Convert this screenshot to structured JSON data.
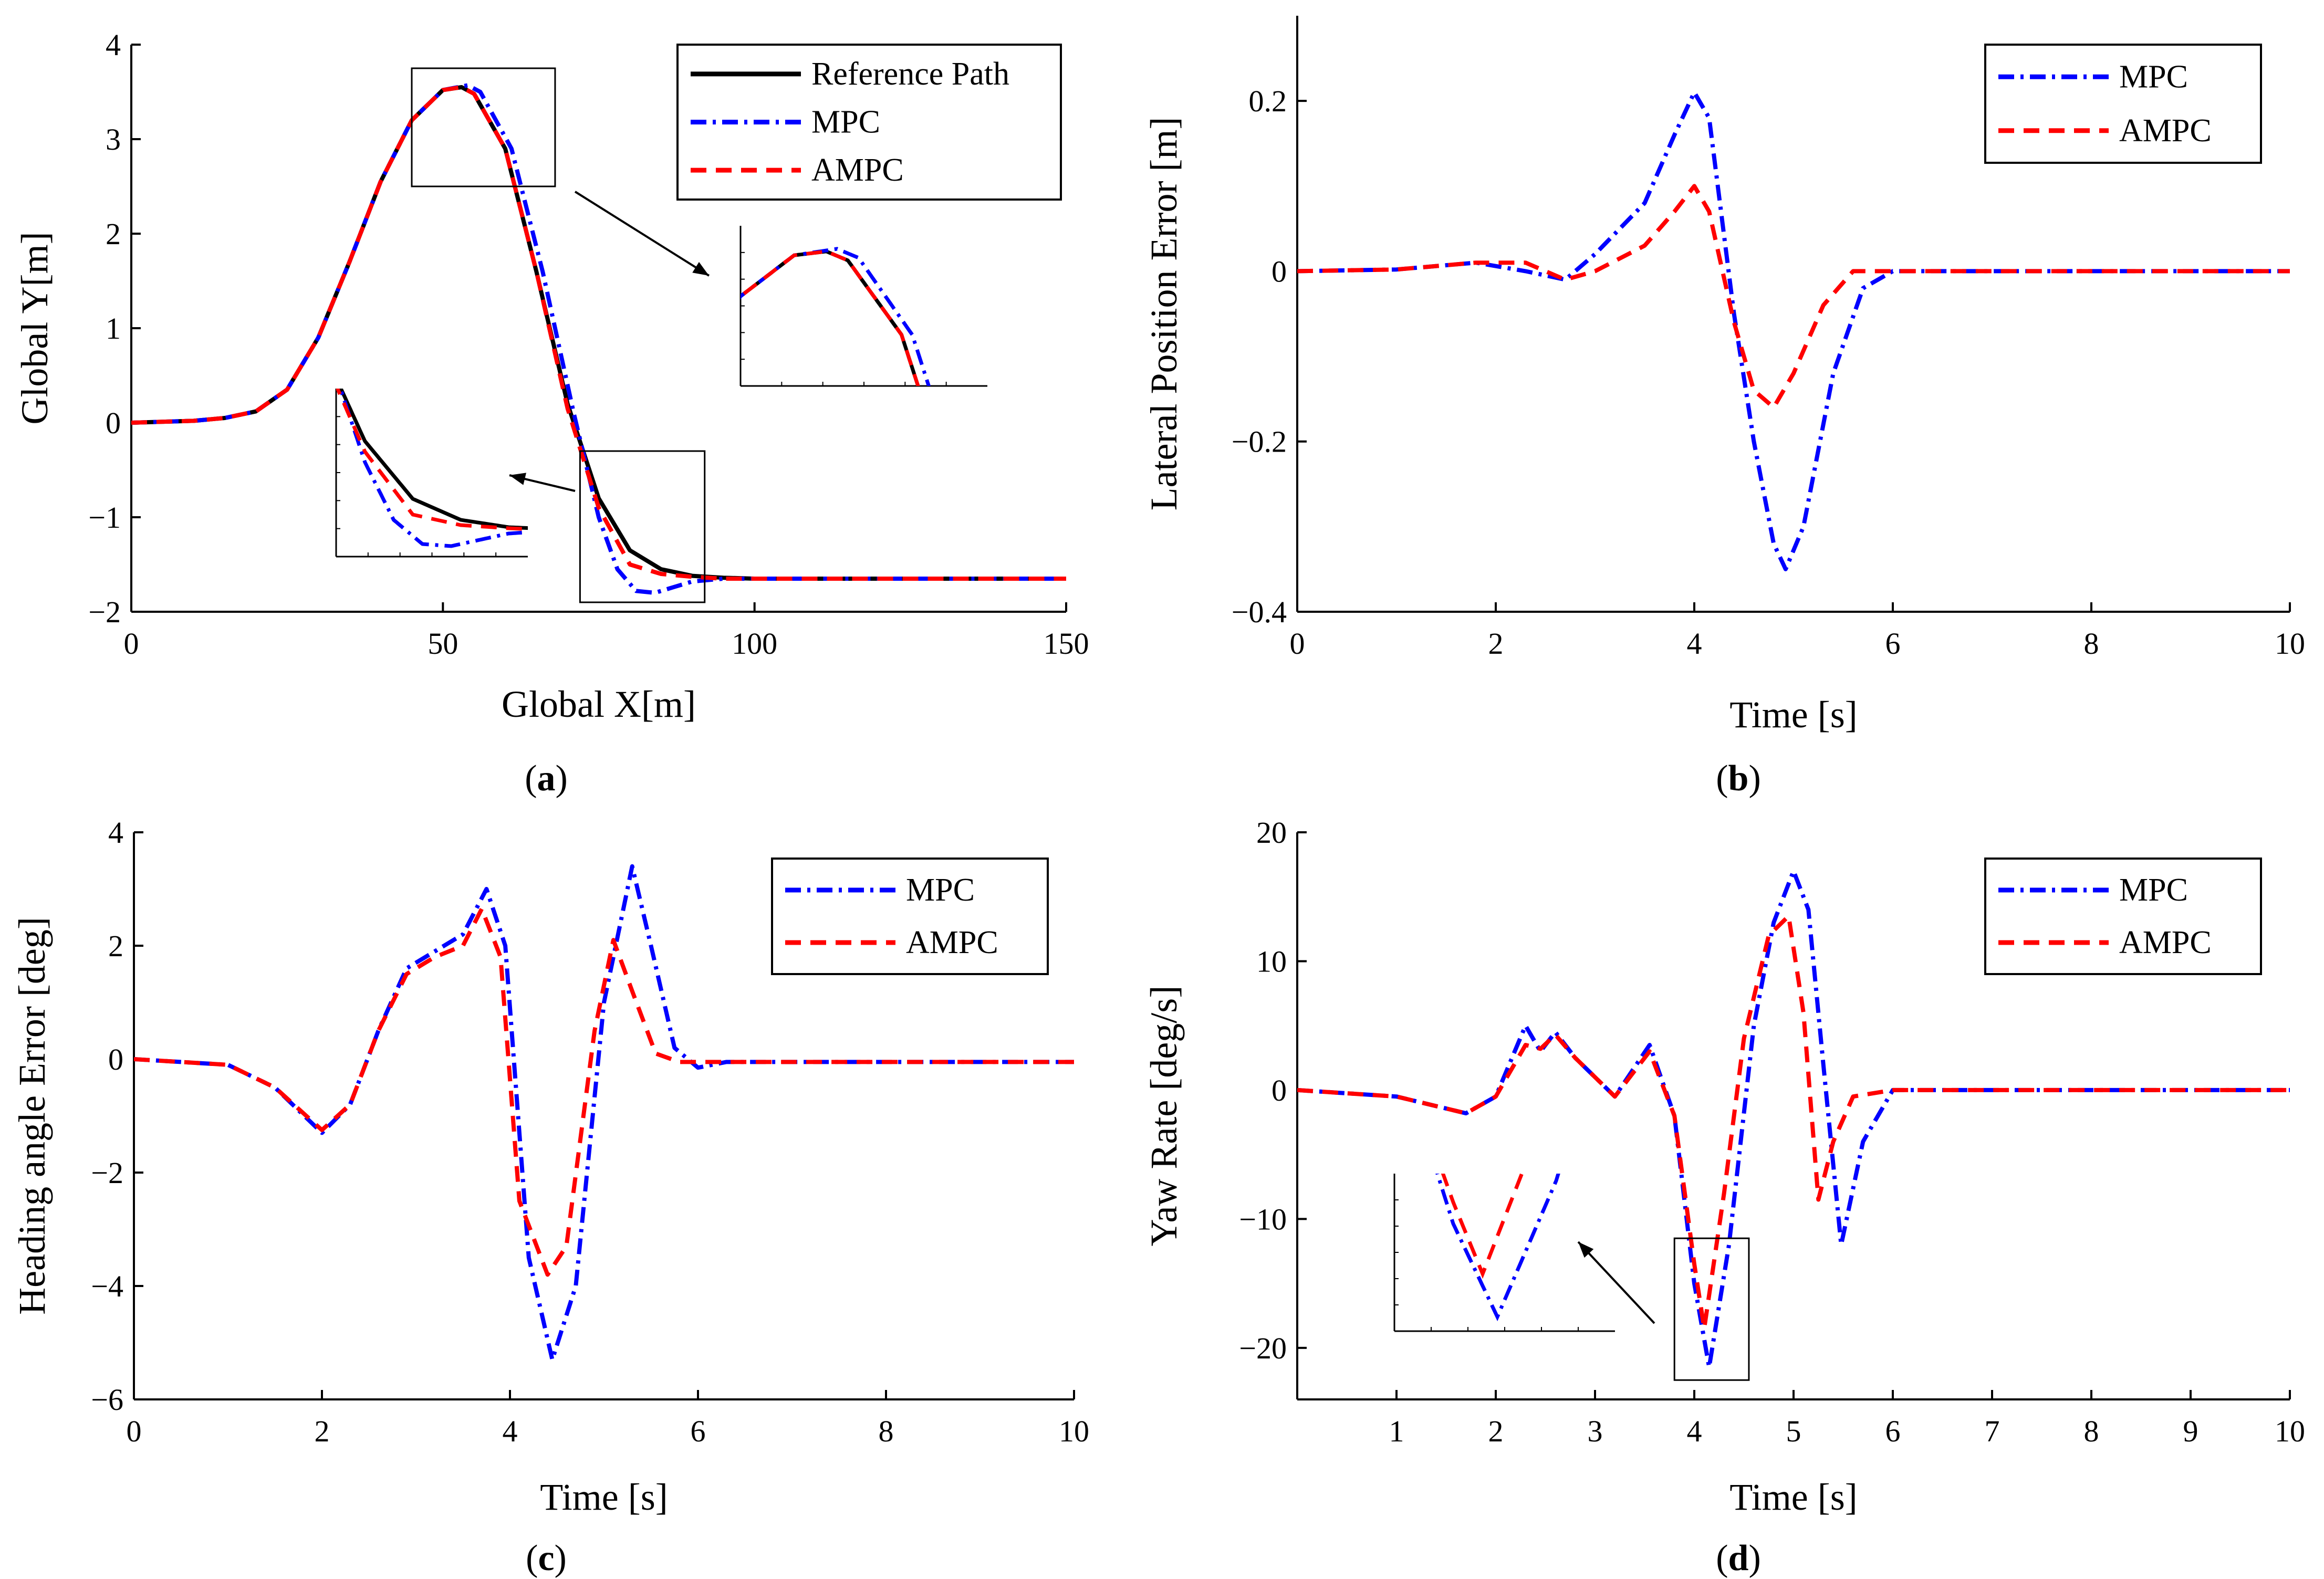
{
  "colors": {
    "reference": "#000000",
    "mpc": "#0000ff",
    "ampc": "#ff0000"
  },
  "chart_data": [
    {
      "id": "a",
      "type": "line",
      "caption": "a",
      "xlabel": "Global X[m]",
      "ylabel": "Global Y[m]",
      "xlim": [
        0,
        150
      ],
      "ylim": [
        -2,
        4
      ],
      "xticks": [
        "0",
        "50",
        "100",
        "150"
      ],
      "xtick_values": [
        0,
        50,
        100,
        150
      ],
      "yticks": [
        "4",
        "3",
        "2",
        "1",
        "0",
        "−1",
        "−2"
      ],
      "ytick_values": [
        4,
        3,
        2,
        1,
        0,
        -1,
        -2
      ],
      "legend": [
        "Reference Path",
        "MPC",
        "AMPC"
      ],
      "series": [
        {
          "name": "Reference Path",
          "x": [
            0,
            10,
            15,
            20,
            25,
            30,
            35,
            40,
            45,
            50,
            53,
            55,
            60,
            65,
            70,
            75,
            80,
            85,
            90,
            95,
            100,
            110,
            150
          ],
          "y": [
            0,
            0.02,
            0.05,
            0.12,
            0.35,
            0.9,
            1.7,
            2.55,
            3.2,
            3.52,
            3.55,
            3.48,
            2.9,
            1.6,
            0.2,
            -0.8,
            -1.35,
            -1.55,
            -1.62,
            -1.64,
            -1.65,
            -1.65,
            -1.65
          ]
        },
        {
          "name": "MPC",
          "x": [
            0,
            10,
            15,
            20,
            25,
            30,
            35,
            40,
            45,
            50,
            54,
            56,
            61,
            66,
            71,
            75,
            78,
            81,
            84,
            87,
            90,
            95,
            100,
            150
          ],
          "y": [
            0,
            0.02,
            0.05,
            0.12,
            0.35,
            0.9,
            1.7,
            2.55,
            3.2,
            3.52,
            3.57,
            3.5,
            2.9,
            1.6,
            0.1,
            -1.0,
            -1.55,
            -1.78,
            -1.8,
            -1.74,
            -1.68,
            -1.65,
            -1.65,
            -1.65
          ]
        },
        {
          "name": "AMPC",
          "x": [
            0,
            10,
            15,
            20,
            25,
            30,
            35,
            40,
            45,
            50,
            53,
            55,
            60,
            65,
            70,
            75,
            80,
            85,
            90,
            95,
            100,
            150
          ],
          "y": [
            0,
            0.02,
            0.05,
            0.12,
            0.35,
            0.9,
            1.7,
            2.55,
            3.2,
            3.52,
            3.55,
            3.48,
            2.9,
            1.6,
            0.15,
            -0.9,
            -1.5,
            -1.6,
            -1.63,
            -1.65,
            -1.65,
            -1.65
          ]
        }
      ],
      "zoom_regions": [
        {
          "x": [
            45,
            68
          ],
          "y": [
            2.5,
            3.75
          ]
        },
        {
          "x": [
            72,
            92
          ],
          "y": [
            -1.9,
            -0.3
          ]
        }
      ]
    },
    {
      "id": "b",
      "type": "line",
      "caption": "b",
      "xlabel": "Time [s]",
      "ylabel": "Lateral Position Error [m]",
      "xlim": [
        0,
        10
      ],
      "ylim": [
        -0.4,
        0.3
      ],
      "xticks": [
        "0",
        "2",
        "4",
        "6",
        "8",
        "10"
      ],
      "xtick_values": [
        0,
        2,
        4,
        6,
        8,
        10
      ],
      "yticks": [
        "0.2",
        "0",
        "−0.2",
        "−0.4"
      ],
      "ytick_values": [
        0.2,
        0,
        -0.2,
        -0.4
      ],
      "legend": [
        "MPC",
        "AMPC"
      ],
      "series": [
        {
          "name": "MPC",
          "x": [
            0,
            1,
            1.8,
            2.3,
            2.7,
            3.0,
            3.5,
            3.8,
            4.0,
            4.15,
            4.4,
            4.6,
            4.8,
            4.92,
            5.1,
            5.4,
            5.7,
            6.0,
            10
          ],
          "y": [
            0,
            0.002,
            0.01,
            0.0,
            -0.01,
            0.02,
            0.08,
            0.16,
            0.21,
            0.18,
            -0.05,
            -0.2,
            -0.32,
            -0.35,
            -0.3,
            -0.12,
            -0.02,
            0,
            0
          ]
        },
        {
          "name": "AMPC",
          "x": [
            0,
            1,
            1.8,
            2.3,
            2.7,
            3.0,
            3.5,
            3.8,
            4.0,
            4.15,
            4.4,
            4.6,
            4.8,
            5.0,
            5.3,
            5.6,
            6.0,
            10
          ],
          "y": [
            0,
            0.002,
            0.01,
            0.01,
            -0.01,
            0.0,
            0.03,
            0.07,
            0.1,
            0.07,
            -0.06,
            -0.14,
            -0.16,
            -0.12,
            -0.04,
            0,
            0,
            0
          ]
        }
      ]
    },
    {
      "id": "c",
      "type": "line",
      "caption": "c",
      "xlabel": "Time [s]",
      "ylabel": "Heading angle Error [deg]",
      "xlim": [
        0,
        10
      ],
      "ylim": [
        -6,
        4
      ],
      "xticks": [
        "0",
        "2",
        "4",
        "6",
        "8",
        "10"
      ],
      "xtick_values": [
        0,
        2,
        4,
        6,
        8,
        10
      ],
      "yticks": [
        "4",
        "2",
        "0",
        "−2",
        "−4",
        "−6"
      ],
      "ytick_values": [
        4,
        2,
        0,
        -2,
        -4,
        -6
      ],
      "legend": [
        "MPC",
        "AMPC"
      ],
      "series": [
        {
          "name": "MPC",
          "x": [
            0,
            1,
            1.5,
            2.0,
            2.3,
            2.6,
            2.9,
            3.2,
            3.5,
            3.75,
            3.95,
            4.2,
            4.45,
            4.7,
            5.0,
            5.3,
            5.5,
            5.75,
            6.0,
            6.3,
            10
          ],
          "y": [
            0,
            -0.1,
            -0.5,
            -1.3,
            -0.8,
            0.5,
            1.6,
            1.9,
            2.2,
            3.0,
            2.0,
            -3.5,
            -5.3,
            -4.0,
            1.0,
            3.4,
            2.0,
            0.2,
            -0.15,
            -0.05,
            -0.05
          ]
        },
        {
          "name": "AMPC",
          "x": [
            0,
            1,
            1.5,
            2.0,
            2.3,
            2.6,
            2.9,
            3.2,
            3.5,
            3.7,
            3.9,
            4.1,
            4.4,
            4.6,
            4.9,
            5.1,
            5.3,
            5.55,
            5.8,
            6.0,
            10
          ],
          "y": [
            0,
            -0.1,
            -0.5,
            -1.25,
            -0.8,
            0.5,
            1.5,
            1.8,
            2.0,
            2.65,
            1.8,
            -2.5,
            -3.8,
            -3.3,
            0.5,
            2.1,
            1.2,
            0.1,
            -0.05,
            -0.05,
            -0.05
          ]
        }
      ]
    },
    {
      "id": "d",
      "type": "line",
      "caption": "d",
      "xlabel": "Time [s]",
      "ylabel": "Yaw Rate [deg/s]",
      "xlim": [
        0,
        10
      ],
      "ylim": [
        -24,
        20
      ],
      "xticks": [
        "1",
        "2",
        "3",
        "4",
        "5",
        "6",
        "7",
        "8",
        "9",
        "10"
      ],
      "xtick_values": [
        1,
        2,
        3,
        4,
        5,
        6,
        7,
        8,
        9,
        10
      ],
      "yticks": [
        "20",
        "10",
        "0",
        "−10",
        "−20"
      ],
      "ytick_values": [
        20,
        10,
        0,
        -10,
        -20
      ],
      "legend": [
        "MPC",
        "AMPC"
      ],
      "series": [
        {
          "name": "MPC",
          "x": [
            0,
            1,
            1.7,
            2.0,
            2.3,
            2.45,
            2.6,
            2.8,
            3.2,
            3.55,
            3.8,
            4.0,
            4.15,
            4.35,
            4.6,
            4.8,
            5.0,
            5.15,
            5.3,
            5.48,
            5.7,
            6.0,
            10
          ],
          "y": [
            0,
            -0.5,
            -1.8,
            -0.5,
            5.0,
            3.0,
            4.5,
            2.5,
            -0.5,
            3.5,
            -2.0,
            -15.0,
            -21.5,
            -12.0,
            5.0,
            13.0,
            17.0,
            14.0,
            2.0,
            -12.0,
            -4.0,
            0,
            0
          ]
        },
        {
          "name": "AMPC",
          "x": [
            0,
            1,
            1.7,
            2.0,
            2.3,
            2.45,
            2.6,
            2.8,
            3.2,
            3.55,
            3.8,
            4.0,
            4.1,
            4.3,
            4.5,
            4.75,
            4.95,
            5.1,
            5.25,
            5.4,
            5.6,
            6.0,
            10
          ],
          "y": [
            0,
            -0.5,
            -1.8,
            -0.5,
            3.5,
            3.2,
            4.3,
            2.5,
            -0.5,
            3.0,
            -2.0,
            -13.5,
            -18.5,
            -8.0,
            4.0,
            12.0,
            13.5,
            6.0,
            -8.5,
            -4.0,
            -0.5,
            0,
            0
          ]
        }
      ],
      "zoom_regions": [
        {
          "x": [
            3.8,
            4.55
          ],
          "y": [
            -22.5,
            -11.5
          ]
        }
      ]
    }
  ]
}
